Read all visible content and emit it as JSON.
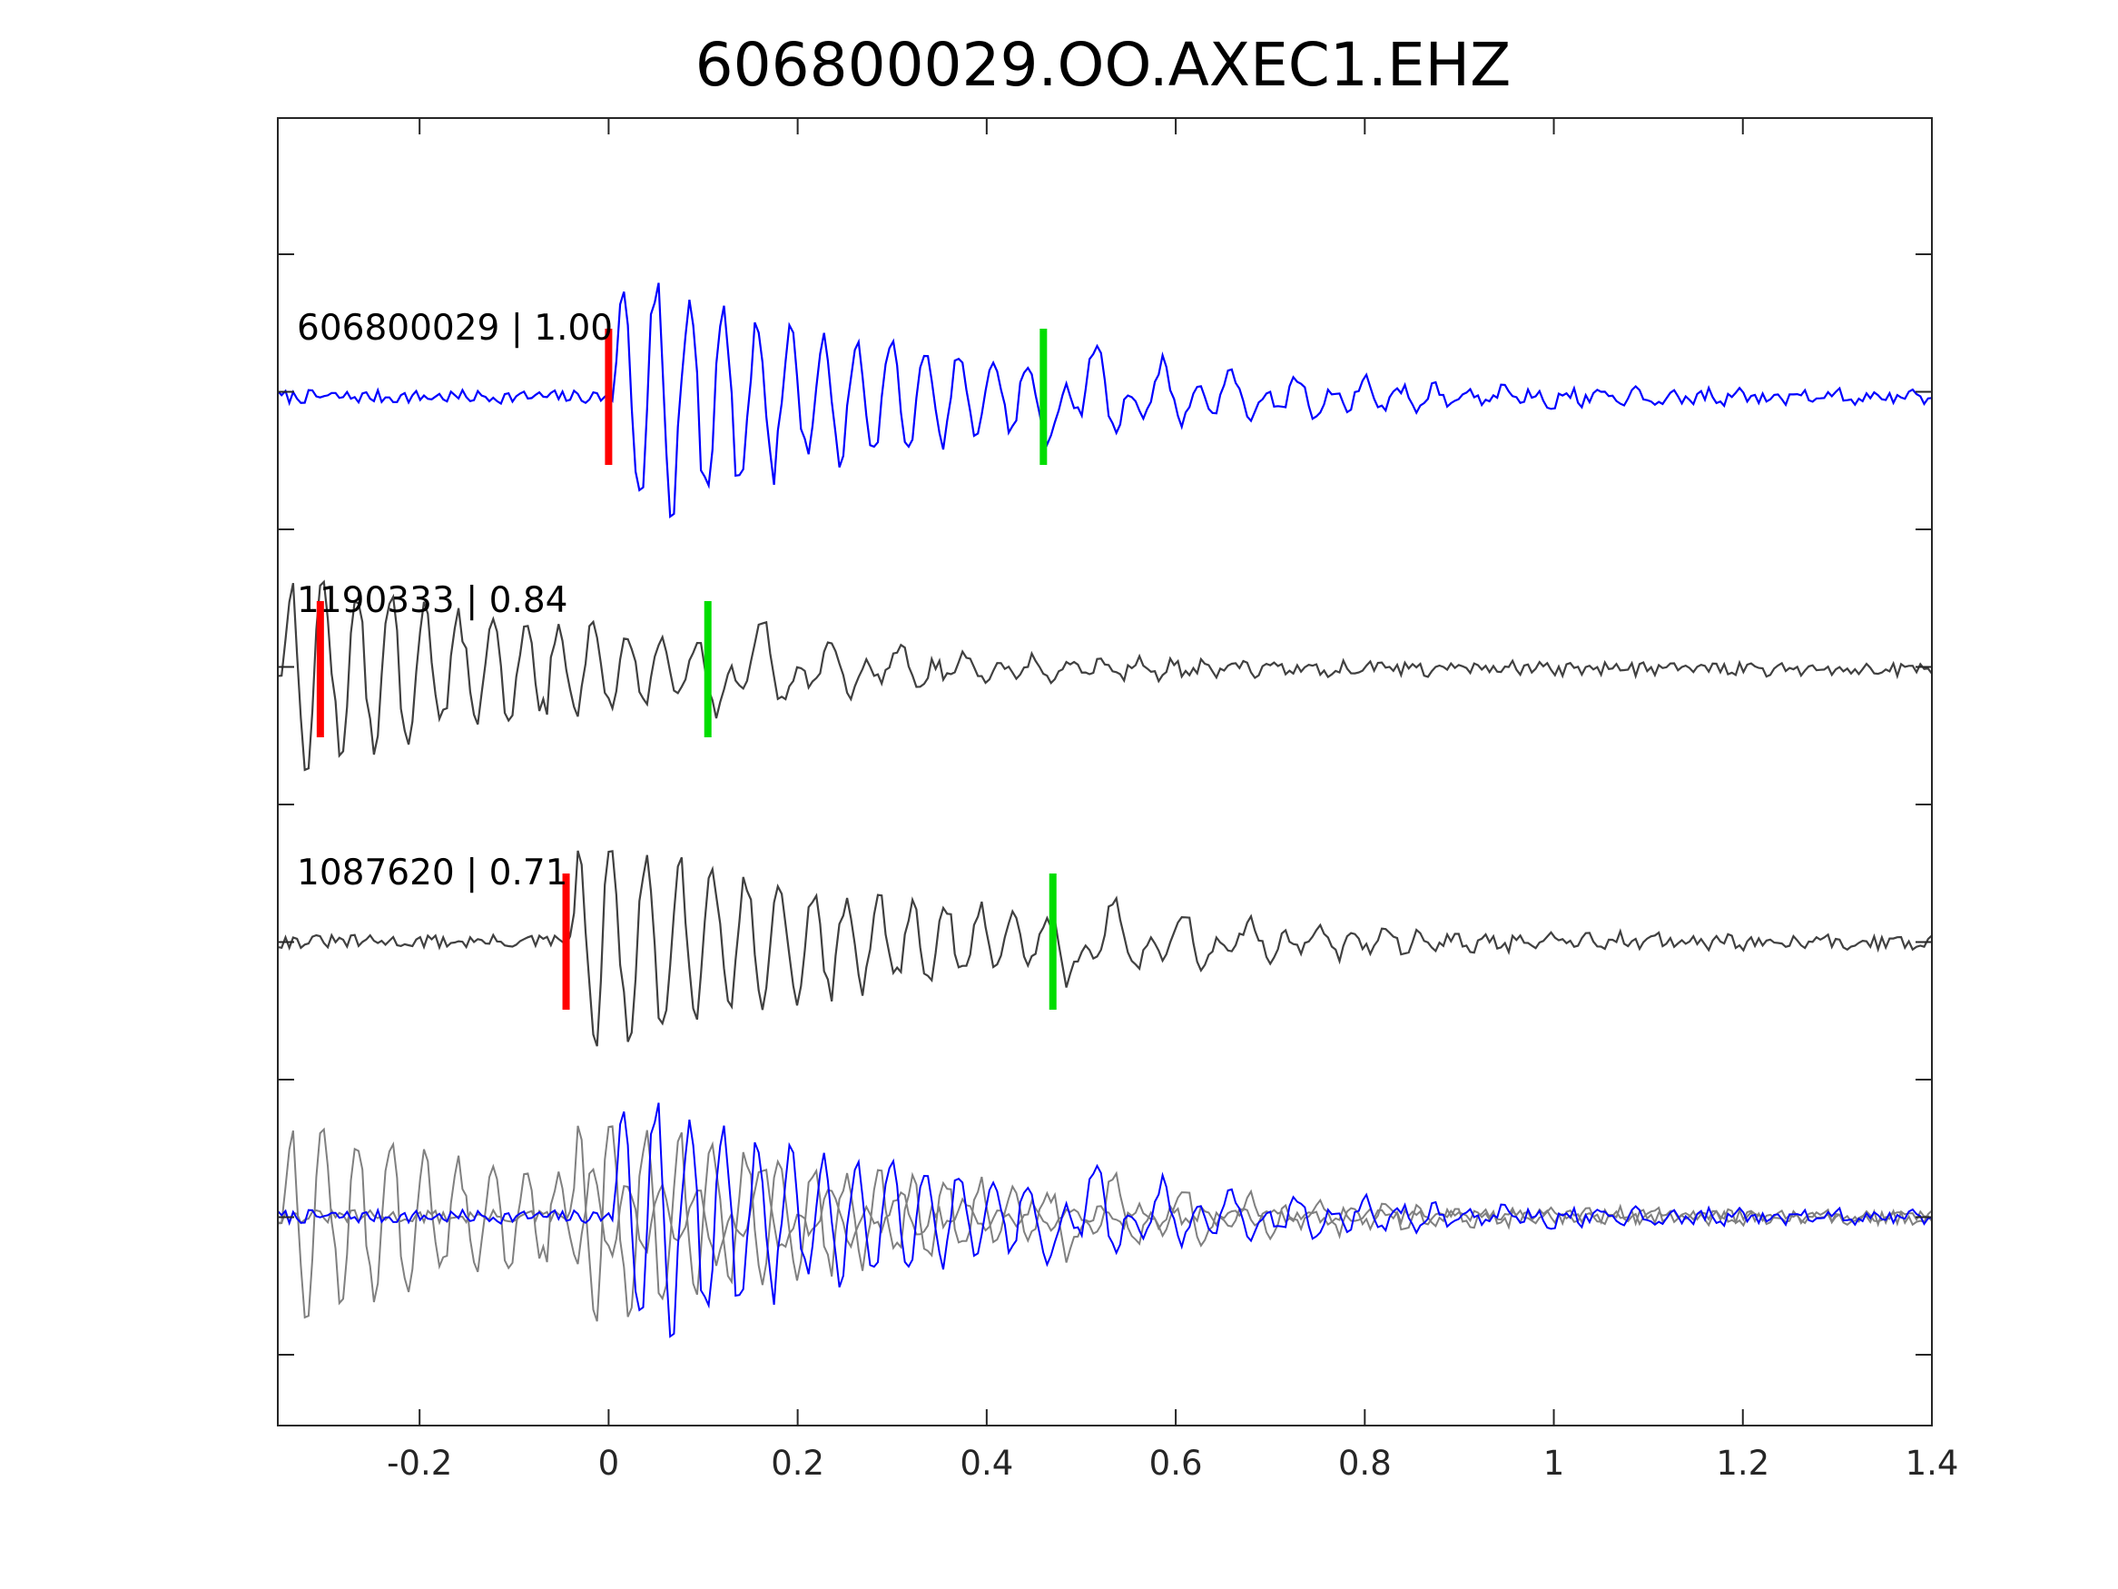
{
  "chart_data": {
    "type": "line",
    "title": "606800029.OO.AXEC1.EHZ",
    "xlabel": "",
    "ylabel": "",
    "xlim": [
      -0.35,
      1.4
    ],
    "x_ticks": [
      {
        "value": -0.2,
        "label": "-0.2"
      },
      {
        "value": 0,
        "label": "0"
      },
      {
        "value": 0.2,
        "label": "0.2"
      },
      {
        "value": 0.4,
        "label": "0.4"
      },
      {
        "value": 0.6,
        "label": "0.6"
      },
      {
        "value": 0.8,
        "label": "0.8"
      },
      {
        "value": 1,
        "label": "1"
      },
      {
        "value": 1.2,
        "label": "1.2"
      },
      {
        "value": 1.4,
        "label": "1.4"
      }
    ],
    "y_tick_count": 9,
    "y_tick_labels": "none",
    "grid": false,
    "colors": {
      "template": "#0000ff",
      "match": "#404040",
      "overlay_match": "#808080",
      "p_pick": "#ff0000",
      "s_pick": "#00dd00",
      "axes": "#262626"
    },
    "traces": [
      {
        "label": "606800029 | 1.00",
        "event_id": "606800029",
        "correlation": "1.00",
        "role": "template",
        "p_pick": 0.0,
        "s_pick": 0.46,
        "onset": 0.0,
        "amplitude": 1.0,
        "seed": 7
      },
      {
        "label": "1190333 | 0.84",
        "event_id": "1190333",
        "correlation": "0.84",
        "role": "match",
        "p_pick": -0.305,
        "s_pick": 0.105,
        "onset": -0.35,
        "amplitude": 0.82,
        "seed": 19
      },
      {
        "label": "1087620 | 0.71",
        "event_id": "1087620",
        "correlation": "0.71",
        "role": "match",
        "p_pick": -0.045,
        "s_pick": 0.47,
        "onset": -0.045,
        "amplitude": 0.9,
        "seed": 31
      }
    ],
    "overlay": {
      "description_in_chart": "",
      "traces": [
        "1190333",
        "1087620",
        "606800029"
      ]
    }
  }
}
